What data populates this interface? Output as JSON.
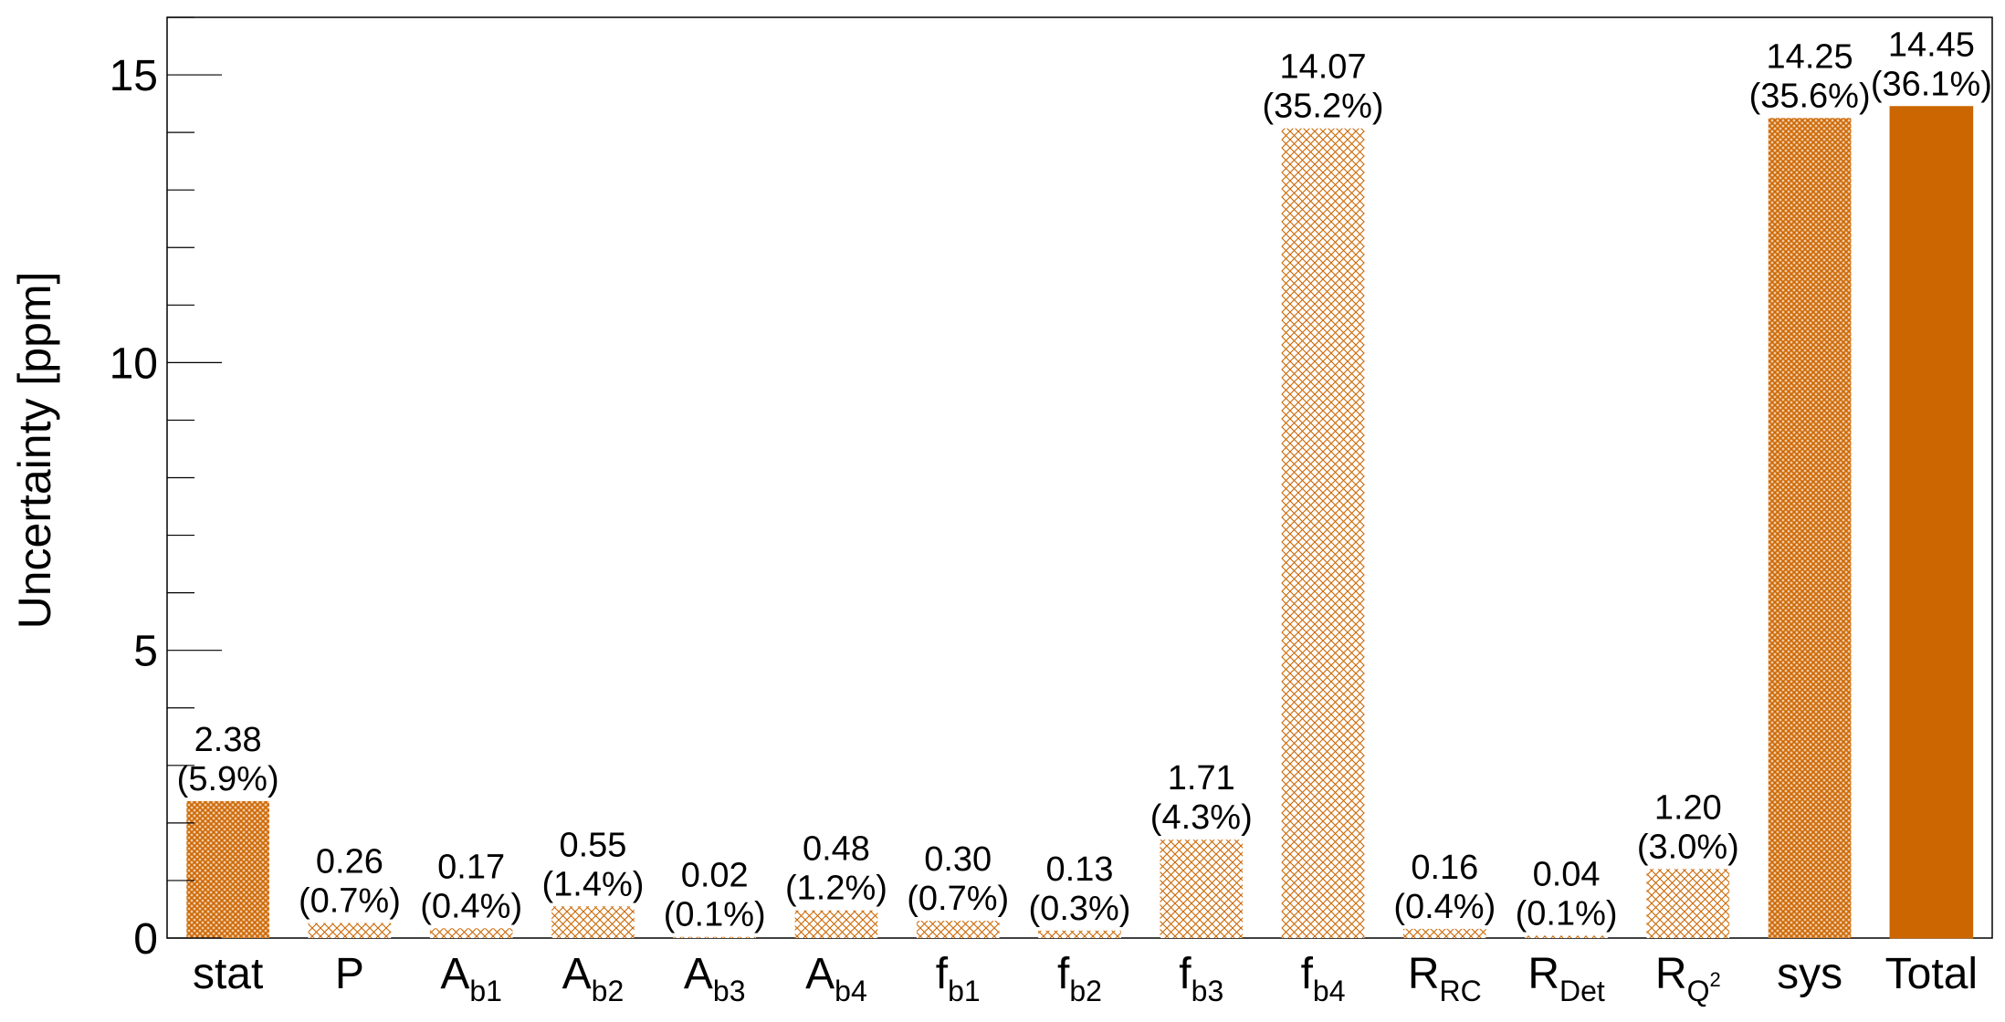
{
  "chart_data": {
    "type": "bar",
    "title": "",
    "ylabel": "Uncertainty [ppm]",
    "xlabel": "",
    "ylim": [
      0,
      16
    ],
    "yticks_major": [
      0,
      5,
      10,
      15
    ],
    "yticks_minor_step": 1,
    "legend": "none",
    "grid": false,
    "accent_color": "#cc6600",
    "categories": [
      {
        "base": "stat",
        "sub": "",
        "sup": ""
      },
      {
        "base": "P",
        "sub": "",
        "sup": ""
      },
      {
        "base": "A",
        "sub": "b1",
        "sup": ""
      },
      {
        "base": "A",
        "sub": "b2",
        "sup": ""
      },
      {
        "base": "A",
        "sub": "b3",
        "sup": ""
      },
      {
        "base": "A",
        "sub": "b4",
        "sup": ""
      },
      {
        "base": "f",
        "sub": "b1",
        "sup": ""
      },
      {
        "base": "f",
        "sub": "b2",
        "sup": ""
      },
      {
        "base": "f",
        "sub": "b3",
        "sup": ""
      },
      {
        "base": "f",
        "sub": "b4",
        "sup": ""
      },
      {
        "base": "R",
        "sub": "RC",
        "sup": ""
      },
      {
        "base": "R",
        "sub": "Det",
        "sup": ""
      },
      {
        "base": "R",
        "sub": "Q",
        "sup": "2"
      },
      {
        "base": "sys",
        "sub": "",
        "sup": ""
      },
      {
        "base": "Total",
        "sub": "",
        "sup": ""
      }
    ],
    "values": [
      2.38,
      0.26,
      0.17,
      0.55,
      0.02,
      0.48,
      0.3,
      0.13,
      1.71,
      14.07,
      0.16,
      0.04,
      1.2,
      14.25,
      14.45
    ],
    "value_labels": [
      "2.38",
      "0.26",
      "0.17",
      "0.55",
      "0.02",
      "0.48",
      "0.30",
      "0.13",
      "1.71",
      "14.07",
      "0.16",
      "0.04",
      "1.20",
      "14.25",
      "14.45"
    ],
    "percent_labels": [
      "(5.9%)",
      "(0.7%)",
      "(0.4%)",
      "(1.4%)",
      "(0.1%)",
      "(1.2%)",
      "(0.7%)",
      "(0.3%)",
      "(4.3%)",
      "(35.2%)",
      "(0.4%)",
      "(0.1%)",
      "(3.0%)",
      "(35.6%)",
      "(36.1%)"
    ],
    "fill_styles": [
      "dense-hatch",
      "light-hatch",
      "light-hatch",
      "light-hatch",
      "light-hatch",
      "light-hatch",
      "light-hatch",
      "light-hatch",
      "light-hatch",
      "light-hatch",
      "light-hatch",
      "light-hatch",
      "light-hatch",
      "dense-hatch",
      "solid"
    ]
  }
}
